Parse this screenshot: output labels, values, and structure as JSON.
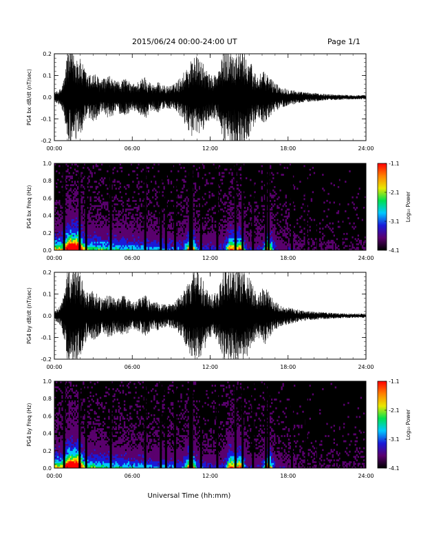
{
  "header": {
    "title": "2015/06/24   00:00-24:00 UT",
    "page": "Page 1/1"
  },
  "footer": {
    "xlabel": "Universal Time (hh:mm)"
  },
  "colorbar": {
    "label": "Log₁₀ Power",
    "ticks": [
      "-1.1",
      "-2.1",
      "-3.1",
      "-4.1"
    ],
    "range": [
      -4.1,
      -1.1
    ],
    "colors": [
      "#000000",
      "#5a006e",
      "#1a1ad8",
      "#00c8ff",
      "#00e050",
      "#e8e800",
      "#ff8000",
      "#ff0000"
    ]
  },
  "chart_data": [
    {
      "type": "line",
      "ylabel": "PG4 bx dB/dt (nT/sec)",
      "xticks": [
        "00:00",
        "06:00",
        "12:00",
        "18:00",
        "24:00"
      ],
      "yticks": [
        "0.2",
        "0.1",
        "0.0",
        "-0.1",
        "-0.2"
      ],
      "xlim": [
        0,
        24
      ],
      "ylim": [
        -0.2,
        0.2
      ],
      "envelope": {
        "x_hours": [
          0,
          0.5,
          0.8,
          1.0,
          1.4,
          1.8,
          2.2,
          2.6,
          3.0,
          3.6,
          4.2,
          4.8,
          5.4,
          6.0,
          6.6,
          7.0,
          7.5,
          8.0,
          8.6,
          9.2,
          9.8,
          10.3,
          10.8,
          11.4,
          12.0,
          12.6,
          13.1,
          13.5,
          14.0,
          14.5,
          15.0,
          15.6,
          16.2,
          16.8,
          17.4,
          18.0,
          19.0,
          20.0,
          21.0,
          22.0,
          23.0,
          24.0
        ],
        "amplitude": [
          0.02,
          0.04,
          0.1,
          0.22,
          0.22,
          0.2,
          0.15,
          0.1,
          0.12,
          0.08,
          0.1,
          0.07,
          0.09,
          0.06,
          0.08,
          0.1,
          0.06,
          0.07,
          0.05,
          0.06,
          0.1,
          0.15,
          0.2,
          0.16,
          0.1,
          0.12,
          0.22,
          0.22,
          0.22,
          0.22,
          0.18,
          0.1,
          0.12,
          0.08,
          0.05,
          0.04,
          0.025,
          0.02,
          0.015,
          0.012,
          0.01,
          0.01
        ]
      }
    },
    {
      "type": "heatmap",
      "ylabel": "PG4 bx Freq (Hz)",
      "xticks": [
        "00:00",
        "06:00",
        "12:00",
        "18:00",
        "24:00"
      ],
      "yticks": [
        "1.0",
        "0.8",
        "0.6",
        "0.4",
        "0.2",
        "0.0"
      ],
      "xlim": [
        0,
        24
      ],
      "ylim": [
        0,
        1.0
      ],
      "data_gaps_hours": [
        0.75,
        1.95,
        2.45,
        4.35,
        7.0,
        8.2,
        8.6,
        9.3,
        10.45,
        10.6,
        11.3,
        12.55,
        13.95,
        14.5,
        15.3,
        16.3,
        16.5,
        18.3,
        19.4,
        20.3,
        22.1
      ],
      "activity_peaks_hours": [
        1.2,
        1.8,
        10.5,
        13.6,
        14.3,
        16.5
      ]
    },
    {
      "type": "line",
      "ylabel": "PG4 by dB/dt (nT/sec)",
      "xticks": [
        "00:00",
        "06:00",
        "12:00",
        "18:00",
        "24:00"
      ],
      "yticks": [
        "0.2",
        "0.1",
        "0.0",
        "-0.1",
        "-0.2"
      ],
      "xlim": [
        0,
        24
      ],
      "ylim": [
        -0.2,
        0.2
      ],
      "envelope": {
        "x_hours": [
          0,
          0.5,
          0.8,
          1.0,
          1.4,
          1.8,
          2.2,
          2.6,
          3.0,
          3.6,
          4.2,
          4.8,
          5.4,
          6.0,
          6.6,
          7.0,
          7.5,
          8.0,
          8.6,
          9.2,
          9.8,
          10.3,
          10.8,
          11.4,
          12.0,
          12.6,
          13.1,
          13.5,
          14.0,
          14.5,
          15.0,
          15.6,
          16.2,
          16.8,
          17.4,
          18.0,
          19.0,
          20.0,
          21.0,
          22.0,
          23.0,
          24.0
        ],
        "amplitude": [
          0.02,
          0.05,
          0.12,
          0.22,
          0.22,
          0.22,
          0.16,
          0.1,
          0.12,
          0.08,
          0.1,
          0.08,
          0.1,
          0.06,
          0.08,
          0.1,
          0.06,
          0.07,
          0.05,
          0.06,
          0.1,
          0.16,
          0.22,
          0.18,
          0.1,
          0.12,
          0.22,
          0.22,
          0.22,
          0.22,
          0.18,
          0.1,
          0.14,
          0.08,
          0.05,
          0.04,
          0.025,
          0.02,
          0.015,
          0.012,
          0.01,
          0.01
        ]
      }
    },
    {
      "type": "heatmap",
      "ylabel": "PG4 by Freq (Hz)",
      "xticks": [
        "00:00",
        "06:00",
        "12:00",
        "18:00",
        "24:00"
      ],
      "yticks": [
        "1.0",
        "0.8",
        "0.6",
        "0.4",
        "0.2",
        "0.0"
      ],
      "xlim": [
        0,
        24
      ],
      "ylim": [
        0,
        1.0
      ],
      "data_gaps_hours": [
        0.75,
        1.95,
        2.45,
        4.35,
        7.0,
        8.2,
        8.6,
        9.3,
        10.45,
        10.6,
        11.3,
        12.55,
        13.95,
        14.5,
        15.3,
        16.3,
        16.5,
        18.3,
        19.4,
        20.3,
        22.1
      ],
      "activity_peaks_hours": [
        1.2,
        1.8,
        10.5,
        13.6,
        14.3,
        16.5
      ]
    }
  ]
}
